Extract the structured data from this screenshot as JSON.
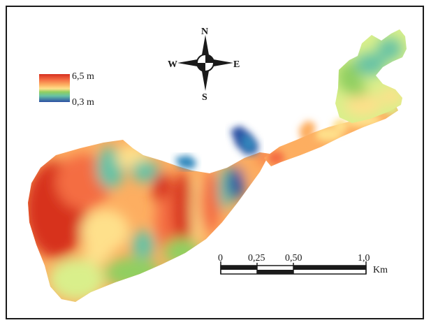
{
  "legend": {
    "max_label": "6,5 m",
    "min_label": "0,3 m",
    "color_ramp": [
      "#d7301f",
      "#f46d43",
      "#fdae61",
      "#fee08b",
      "#d9ef8b",
      "#91cf60",
      "#66c2a5",
      "#3288bd",
      "#2c4fa3"
    ]
  },
  "compass": {
    "north": "N",
    "south": "S",
    "east": "E",
    "west": "W"
  },
  "scale_bar": {
    "tick_labels": [
      "0",
      "0,25",
      "0,50",
      "1,0"
    ],
    "unit": "Km"
  },
  "colors": {
    "deep": "#d7301f",
    "high": "#f46d43",
    "mid_high": "#fdae61",
    "mid": "#fee08b",
    "mid_low": "#d9ef8b",
    "low": "#91cf60",
    "lower": "#66c2a5",
    "shallow": "#3288bd",
    "shallowest": "#2c4fa3"
  }
}
